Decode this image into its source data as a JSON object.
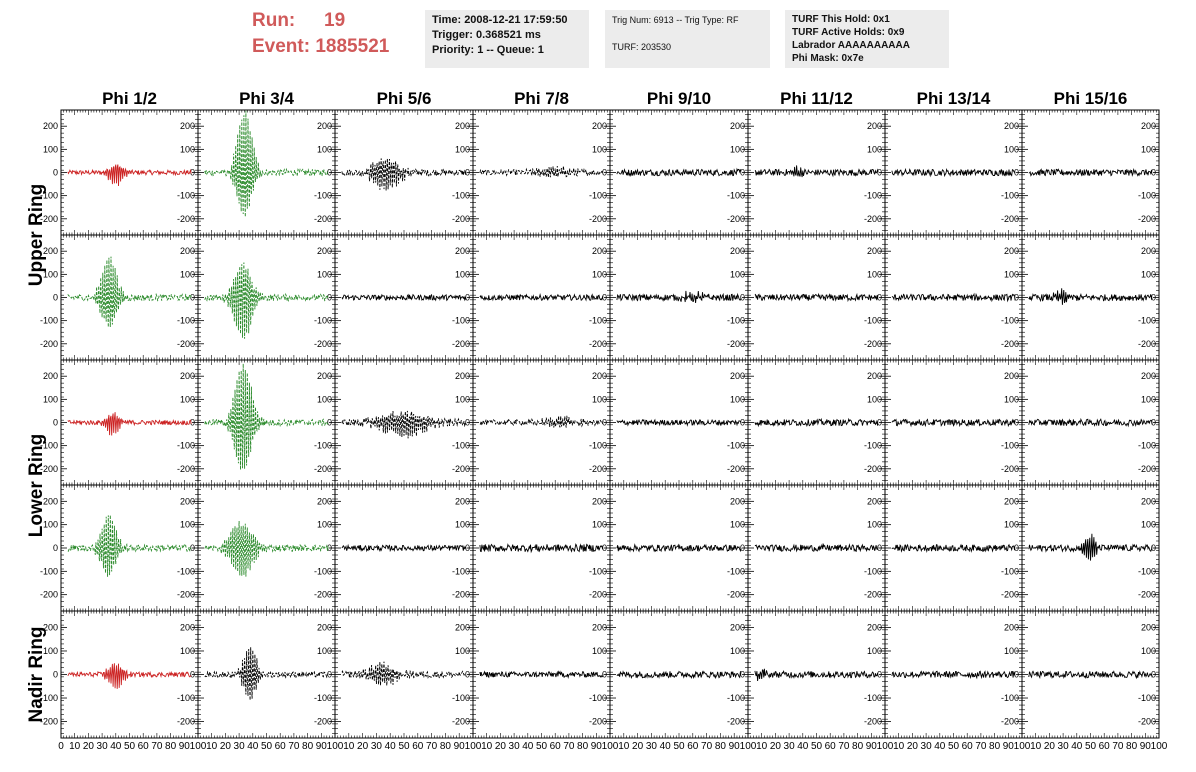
{
  "header": {
    "run_label": "Run:",
    "run_value": "19",
    "event_label": "Event:",
    "event_value": "1885521"
  },
  "info_boxes": [
    {
      "lines": [
        "Time: 2008-12-21 17:59:50",
        "Trigger: 0.368521 ms",
        "Priority: 1 -- Queue: 1"
      ]
    },
    {
      "lines": [
        "Trig Num: 6913 -- Trig Type: RF",
        "",
        "TURF: 203530"
      ]
    },
    {
      "lines": [
        "TURF This Hold: 0x1",
        "TURF Active Holds: 0x9",
        "Labrador AAAAAAAAAA",
        "Phi Mask: 0x7e"
      ]
    }
  ],
  "colors": {
    "red": "#cc2222",
    "green": "#2a8a2a",
    "black": "#000000",
    "header_red": "#d05a5a",
    "info_bg": "#ececec"
  },
  "chart_data": {
    "type": "line",
    "columns": [
      "Phi 1/2",
      "Phi 3/4",
      "Phi 5/6",
      "Phi 7/8",
      "Phi 9/10",
      "Phi 11/12",
      "Phi 13/14",
      "Phi 15/16"
    ],
    "row_groups": [
      {
        "label": "Upper Ring",
        "rows": [
          0,
          1
        ]
      },
      {
        "label": "Lower Ring",
        "rows": [
          2,
          3
        ]
      },
      {
        "label": "Nadir Ring",
        "rows": [
          4
        ]
      }
    ],
    "x_ticks": [
      "0",
      "10",
      "20",
      "30",
      "40",
      "50",
      "60",
      "70",
      "80",
      "90",
      "100"
    ],
    "y_ticks": [
      "200",
      "100",
      "0",
      "-100",
      "-200"
    ],
    "xlim": [
      0,
      100
    ],
    "ylim": [
      -270,
      270
    ],
    "panels": [
      [
        {
          "color": "red",
          "dashed": false,
          "noise": 10,
          "peak": 55,
          "center": 40,
          "width": 6
        },
        {
          "color": "green",
          "dashed": true,
          "noise": 14,
          "peak": 270,
          "center": 34,
          "width": 7
        },
        {
          "color": "black",
          "dashed": true,
          "noise": 14,
          "peak": 75,
          "center": 37,
          "width": 12
        },
        {
          "color": "black",
          "dashed": true,
          "noise": 12,
          "peak": 20,
          "center": 60,
          "width": 15
        },
        {
          "color": "black",
          "dashed": false,
          "noise": 14,
          "peak": 0,
          "center": 50,
          "width": 10
        },
        {
          "color": "black",
          "dashed": false,
          "noise": 14,
          "peak": 30,
          "center": 35,
          "width": 4
        },
        {
          "color": "black",
          "dashed": false,
          "noise": 14,
          "peak": 0,
          "center": 50,
          "width": 10
        },
        {
          "color": "black",
          "dashed": false,
          "noise": 14,
          "peak": 0,
          "center": 50,
          "width": 10
        }
      ],
      [
        {
          "color": "green",
          "dashed": true,
          "noise": 14,
          "peak": 180,
          "center": 35,
          "width": 7
        },
        {
          "color": "green",
          "dashed": true,
          "noise": 14,
          "peak": 190,
          "center": 33,
          "width": 8
        },
        {
          "color": "black",
          "dashed": false,
          "noise": 12,
          "peak": 0,
          "center": 50,
          "width": 10
        },
        {
          "color": "black",
          "dashed": false,
          "noise": 12,
          "peak": 0,
          "center": 50,
          "width": 10
        },
        {
          "color": "black",
          "dashed": false,
          "noise": 14,
          "peak": 20,
          "center": 60,
          "width": 10
        },
        {
          "color": "black",
          "dashed": false,
          "noise": 14,
          "peak": 0,
          "center": 50,
          "width": 10
        },
        {
          "color": "black",
          "dashed": false,
          "noise": 14,
          "peak": 0,
          "center": 50,
          "width": 10
        },
        {
          "color": "black",
          "dashed": false,
          "noise": 14,
          "peak": 30,
          "center": 30,
          "width": 6
        }
      ],
      [
        {
          "color": "red",
          "dashed": false,
          "noise": 10,
          "peak": 55,
          "center": 38,
          "width": 6
        },
        {
          "color": "green",
          "dashed": true,
          "noise": 14,
          "peak": 260,
          "center": 33,
          "width": 8
        },
        {
          "color": "black",
          "dashed": true,
          "noise": 14,
          "peak": 60,
          "center": 50,
          "width": 20
        },
        {
          "color": "black",
          "dashed": true,
          "noise": 12,
          "peak": 20,
          "center": 65,
          "width": 15
        },
        {
          "color": "black",
          "dashed": false,
          "noise": 12,
          "peak": 0,
          "center": 50,
          "width": 10
        },
        {
          "color": "black",
          "dashed": false,
          "noise": 14,
          "peak": 0,
          "center": 50,
          "width": 10
        },
        {
          "color": "black",
          "dashed": false,
          "noise": 14,
          "peak": 0,
          "center": 50,
          "width": 10
        },
        {
          "color": "black",
          "dashed": false,
          "noise": 14,
          "peak": 0,
          "center": 50,
          "width": 10
        }
      ],
      [
        {
          "color": "green",
          "dashed": true,
          "noise": 14,
          "peak": 150,
          "center": 35,
          "width": 7
        },
        {
          "color": "green",
          "dashed": true,
          "noise": 14,
          "peak": 130,
          "center": 32,
          "width": 10
        },
        {
          "color": "black",
          "dashed": false,
          "noise": 12,
          "peak": 0,
          "center": 50,
          "width": 10
        },
        {
          "color": "black",
          "dashed": false,
          "noise": 16,
          "peak": 0,
          "center": 50,
          "width": 10
        },
        {
          "color": "black",
          "dashed": false,
          "noise": 14,
          "peak": 0,
          "center": 50,
          "width": 10
        },
        {
          "color": "black",
          "dashed": false,
          "noise": 14,
          "peak": 0,
          "center": 50,
          "width": 10
        },
        {
          "color": "black",
          "dashed": false,
          "noise": 14,
          "peak": 0,
          "center": 50,
          "width": 10
        },
        {
          "color": "black",
          "dashed": false,
          "noise": 14,
          "peak": 60,
          "center": 50,
          "width": 5
        }
      ],
      [
        {
          "color": "red",
          "dashed": false,
          "noise": 10,
          "peak": 60,
          "center": 40,
          "width": 7
        },
        {
          "color": "black",
          "dashed": true,
          "noise": 12,
          "peak": 130,
          "center": 38,
          "width": 6
        },
        {
          "color": "black",
          "dashed": true,
          "noise": 14,
          "peak": 50,
          "center": 35,
          "width": 12
        },
        {
          "color": "black",
          "dashed": false,
          "noise": 12,
          "peak": 0,
          "center": 50,
          "width": 10
        },
        {
          "color": "black",
          "dashed": false,
          "noise": 14,
          "peak": 0,
          "center": 50,
          "width": 10
        },
        {
          "color": "black",
          "dashed": false,
          "noise": 14,
          "peak": 25,
          "center": 10,
          "width": 4
        },
        {
          "color": "black",
          "dashed": false,
          "noise": 14,
          "peak": 0,
          "center": 50,
          "width": 10
        },
        {
          "color": "black",
          "dashed": false,
          "noise": 14,
          "peak": 0,
          "center": 50,
          "width": 10
        }
      ]
    ]
  }
}
